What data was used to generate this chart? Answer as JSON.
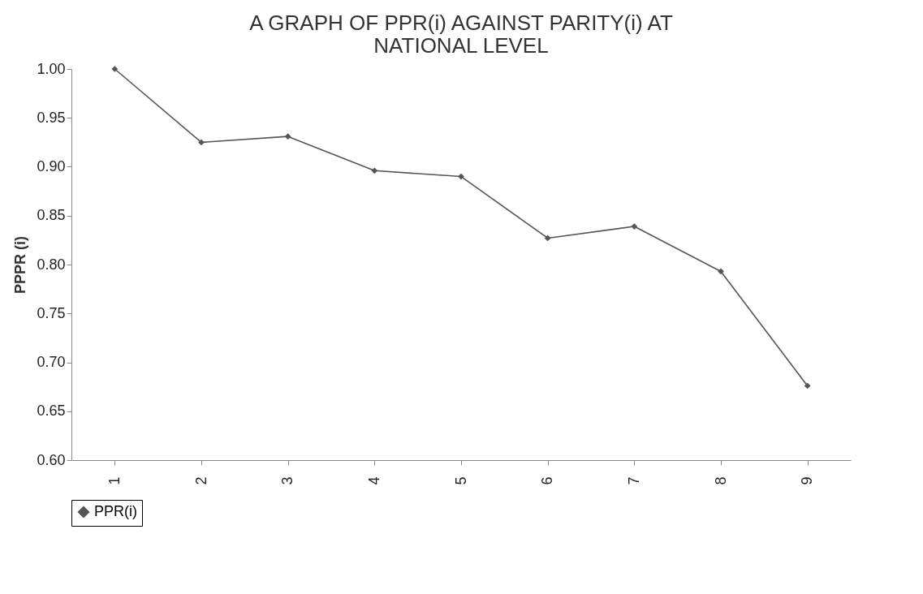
{
  "chart_data": {
    "type": "line",
    "title": "A GRAPH OF PPR(i) AGAINST PARITY(i) AT NATIONAL LEVEL",
    "ylabel": "PPPR (i)",
    "categories": [
      "1",
      "2",
      "3",
      "4",
      "5",
      "6",
      "7",
      "8",
      "9"
    ],
    "series": [
      {
        "name": "PPR(i)",
        "color": "#555555",
        "values": [
          1.0,
          0.925,
          0.931,
          0.896,
          0.89,
          0.827,
          0.839,
          0.793,
          0.676
        ]
      }
    ],
    "ylim": [
      0.6,
      1.0
    ],
    "yticks": [
      {
        "value": 0.6,
        "label": "0.60"
      },
      {
        "value": 0.65,
        "label": "0.65"
      },
      {
        "value": 0.7,
        "label": "0.70"
      },
      {
        "value": 0.75,
        "label": "0.75"
      },
      {
        "value": 0.8,
        "label": "0.80"
      },
      {
        "value": 0.85,
        "label": "0.85"
      },
      {
        "value": 0.9,
        "label": "0.90"
      },
      {
        "value": 0.95,
        "label": "0.95"
      },
      {
        "value": 1.0,
        "label": "1.00"
      }
    ],
    "grid": false,
    "legend": "bottom",
    "marker": "diamond",
    "line_style": "solid"
  }
}
